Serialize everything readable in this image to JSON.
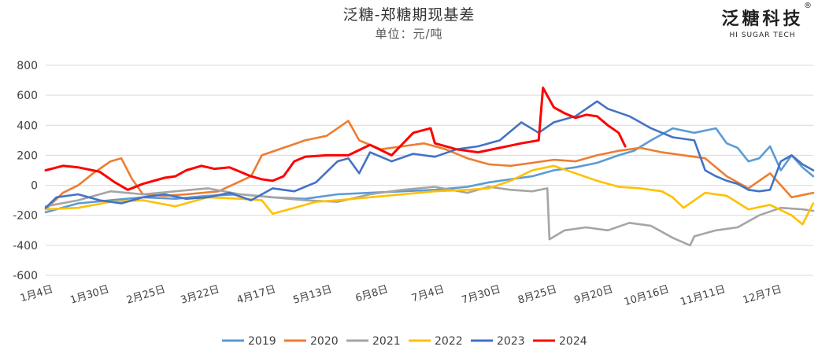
{
  "header": {
    "brand_name": "泛糖科技",
    "brand_reg": "®",
    "brand_sub": "HI SUGAR TECH"
  },
  "chart_data": {
    "type": "line",
    "title": "泛糖-郑糖期现基差",
    "subtitle": "单位：元/吨",
    "xlabel": "",
    "ylabel": "",
    "ylim": [
      -600,
      800
    ],
    "y_ticks": [
      800,
      600,
      400,
      200,
      0,
      -200,
      -400,
      -600
    ],
    "x_ticks": [
      "1月4日",
      "1月30日",
      "2月25日",
      "3月22日",
      "4月17日",
      "5月13日",
      "6月8日",
      "7月4日",
      "7月30日",
      "8月25日",
      "9月20日",
      "10月16日",
      "11月11日",
      "12月7日"
    ],
    "x_range_days": [
      0,
      355
    ],
    "x_tick_days": [
      0,
      26,
      52,
      77,
      103,
      129,
      155,
      181,
      207,
      233,
      259,
      285,
      311,
      337
    ],
    "legend_position": "bottom",
    "grid": true,
    "series": [
      {
        "name": "2019",
        "color": "#5B9BD5",
        "x": [
          0,
          15,
          30,
          45,
          60,
          75,
          90,
          105,
          120,
          135,
          150,
          165,
          180,
          195,
          205,
          215,
          225,
          235,
          245,
          255,
          265,
          272,
          280,
          290,
          300,
          310,
          315,
          320,
          325,
          330,
          335,
          340,
          345,
          350,
          355
        ],
        "y": [
          -180,
          -120,
          -100,
          -80,
          -90,
          -70,
          -60,
          -80,
          -90,
          -60,
          -50,
          -40,
          -30,
          -10,
          20,
          40,
          60,
          100,
          120,
          150,
          200,
          230,
          300,
          380,
          350,
          380,
          280,
          250,
          160,
          180,
          260,
          100,
          200,
          120,
          60
        ]
      },
      {
        "name": "2020",
        "color": "#ED7D31",
        "x": [
          0,
          8,
          15,
          22,
          30,
          35,
          40,
          45,
          55,
          65,
          80,
          95,
          100,
          110,
          120,
          130,
          135,
          140,
          145,
          155,
          165,
          175,
          185,
          195,
          205,
          215,
          225,
          235,
          245,
          255,
          265,
          275,
          285,
          295,
          305,
          315,
          325,
          335,
          345,
          355
        ],
        "y": [
          -160,
          -50,
          0,
          80,
          160,
          180,
          40,
          -60,
          -70,
          -60,
          -40,
          60,
          200,
          250,
          300,
          330,
          380,
          430,
          300,
          240,
          260,
          280,
          240,
          180,
          140,
          130,
          150,
          170,
          160,
          200,
          230,
          250,
          220,
          200,
          180,
          60,
          -20,
          80,
          -80,
          -50
        ]
      },
      {
        "name": "2021",
        "color": "#A5A5A5",
        "x": [
          0,
          15,
          30,
          45,
          60,
          75,
          90,
          105,
          120,
          135,
          150,
          165,
          180,
          195,
          205,
          215,
          225,
          232,
          233,
          240,
          250,
          260,
          270,
          280,
          290,
          298,
          300,
          310,
          320,
          330,
          340,
          350,
          355
        ],
        "y": [
          -140,
          -100,
          -40,
          -60,
          -40,
          -20,
          -60,
          -80,
          -100,
          -110,
          -60,
          -30,
          -10,
          -50,
          -10,
          -30,
          -40,
          -20,
          -360,
          -300,
          -280,
          -300,
          -250,
          -270,
          -350,
          -400,
          -340,
          -300,
          -280,
          -200,
          -150,
          -160,
          -170
        ]
      },
      {
        "name": "2022",
        "color": "#FFC000",
        "x": [
          0,
          15,
          30,
          45,
          60,
          75,
          90,
          100,
          105,
          115,
          125,
          135,
          150,
          165,
          180,
          195,
          205,
          215,
          225,
          235,
          245,
          255,
          265,
          275,
          285,
          290,
          295,
          305,
          315,
          325,
          335,
          345,
          350,
          355
        ],
        "y": [
          -160,
          -150,
          -110,
          -100,
          -140,
          -80,
          -90,
          -100,
          -190,
          -150,
          -110,
          -100,
          -80,
          -60,
          -40,
          -30,
          -20,
          30,
          100,
          130,
          80,
          30,
          -10,
          -20,
          -40,
          -80,
          -150,
          -50,
          -70,
          -160,
          -130,
          -200,
          -260,
          -120
        ]
      },
      {
        "name": "2023",
        "color": "#4472C4",
        "x": [
          0,
          5,
          15,
          25,
          35,
          45,
          55,
          65,
          75,
          85,
          95,
          105,
          115,
          125,
          135,
          140,
          145,
          150,
          160,
          170,
          180,
          190,
          200,
          210,
          220,
          228,
          235,
          245,
          255,
          260,
          270,
          280,
          290,
          300,
          305,
          310,
          315,
          320,
          325,
          330,
          335,
          340,
          345,
          350,
          355
        ],
        "y": [
          -150,
          -80,
          -60,
          -100,
          -120,
          -80,
          -60,
          -90,
          -80,
          -50,
          -100,
          -20,
          -40,
          20,
          160,
          180,
          80,
          220,
          160,
          210,
          190,
          240,
          260,
          300,
          420,
          350,
          420,
          460,
          560,
          510,
          460,
          380,
          320,
          300,
          100,
          60,
          30,
          10,
          -30,
          -40,
          -30,
          160,
          200,
          140,
          100
        ]
      },
      {
        "name": "2024",
        "color": "#FF0000",
        "x": [
          0,
          8,
          15,
          25,
          32,
          38,
          45,
          55,
          60,
          65,
          72,
          78,
          85,
          95,
          100,
          105,
          110,
          115,
          120,
          130,
          140,
          150,
          160,
          170,
          178,
          180,
          190,
          200,
          210,
          220,
          228,
          230,
          235,
          240,
          245,
          250,
          255,
          260,
          265,
          268
        ],
        "y": [
          100,
          130,
          120,
          90,
          20,
          -30,
          10,
          50,
          60,
          100,
          130,
          110,
          120,
          60,
          40,
          30,
          60,
          160,
          190,
          200,
          200,
          270,
          200,
          350,
          380,
          280,
          240,
          220,
          250,
          280,
          300,
          650,
          520,
          480,
          450,
          470,
          460,
          400,
          350,
          260
        ]
      }
    ]
  }
}
